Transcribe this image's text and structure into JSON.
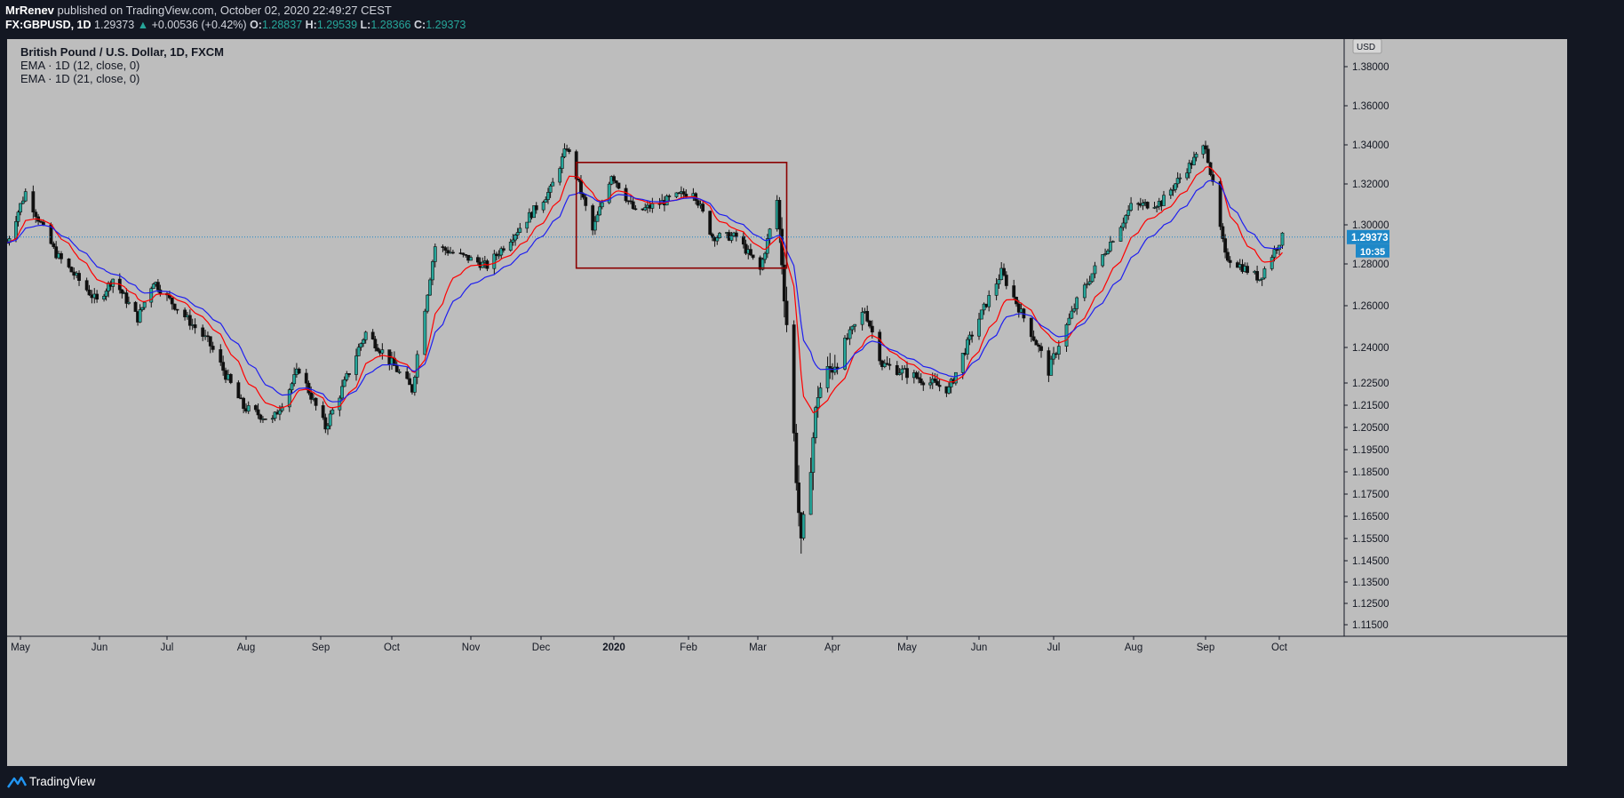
{
  "header": {
    "publisher": "MrRenev",
    "published_text": " published on TradingView.com, October 02, 2020 22:49:27 CEST",
    "symbol": "FX:GBPUSD, 1D",
    "last": "1.29373",
    "change_arrow": "▲",
    "change": "+0.00536 (+0.42%)",
    "o_label": "O:",
    "o_value": "1.28837",
    "h_label": "H:",
    "h_value": "1.29539",
    "l_label": "L:",
    "l_value": "1.28366",
    "c_label": "C:",
    "c_value": "1.29373"
  },
  "legend": {
    "title": "British Pound / U.S. Dollar, 1D, FXCM",
    "ema1": "EMA · 1D (12, close, 0)",
    "ema2": "EMA · 1D (21, close, 0)"
  },
  "price_scale": {
    "currency": "USD",
    "last_price": "1.29373",
    "countdown": "10:35",
    "ticks": [
      "1.38000",
      "1.36000",
      "1.34000",
      "1.32000",
      "1.30000",
      "1.28000",
      "1.26000",
      "1.24000",
      "1.22500",
      "1.21500",
      "1.20500",
      "1.19500",
      "1.18500",
      "1.17500",
      "1.16500",
      "1.15500",
      "1.14500",
      "1.13500",
      "1.12500",
      "1.11500"
    ]
  },
  "footer": {
    "brand": "TradingView"
  },
  "colors": {
    "bull": "#26a69a",
    "bear": "#101010",
    "ema12": "#ff0000",
    "ema21": "#1e1ef0",
    "box": "#8b0000",
    "last_price": "#1e88c8",
    "pane": "#bdbdbd",
    "background": "#131722"
  },
  "chart_data": {
    "type": "candlestick",
    "title": "British Pound / U.S. Dollar, 1D, FXCM",
    "x_axis_months": [
      "May",
      "Jun",
      "Jul",
      "Aug",
      "Sep",
      "Oct",
      "Nov",
      "Dec",
      "2020",
      "Feb",
      "Mar",
      "Apr",
      "May",
      "Jun",
      "Jul",
      "Aug",
      "Sep",
      "Oct"
    ],
    "y_range": [
      1.11,
      1.39
    ],
    "series": [
      {
        "name": "EMA · 1D (12, close, 0)",
        "color": "#ff0000"
      },
      {
        "name": "EMA · 1D (21, close, 0)",
        "color": "#1e1ef0"
      }
    ],
    "close_anchors": [
      {
        "date": "2019-04-25",
        "close": 1.291
      },
      {
        "date": "2019-05-03",
        "close": 1.316
      },
      {
        "date": "2019-05-15",
        "close": 1.285
      },
      {
        "date": "2019-05-31",
        "close": 1.262
      },
      {
        "date": "2019-06-07",
        "close": 1.273
      },
      {
        "date": "2019-06-18",
        "close": 1.254
      },
      {
        "date": "2019-06-25",
        "close": 1.272
      },
      {
        "date": "2019-07-17",
        "close": 1.243
      },
      {
        "date": "2019-07-31",
        "close": 1.214
      },
      {
        "date": "2019-08-12",
        "close": 1.208
      },
      {
        "date": "2019-08-23",
        "close": 1.231
      },
      {
        "date": "2019-09-03",
        "close": 1.205
      },
      {
        "date": "2019-09-20",
        "close": 1.247
      },
      {
        "date": "2019-10-02",
        "close": 1.232
      },
      {
        "date": "2019-10-09",
        "close": 1.222
      },
      {
        "date": "2019-10-18",
        "close": 1.289
      },
      {
        "date": "2019-11-08",
        "close": 1.279
      },
      {
        "date": "2019-12-05",
        "close": 1.317
      },
      {
        "date": "2019-12-12",
        "close": 1.339
      },
      {
        "date": "2019-12-23",
        "close": 1.297
      },
      {
        "date": "2019-12-31",
        "close": 1.325
      },
      {
        "date": "2020-01-10",
        "close": 1.306
      },
      {
        "date": "2020-02-03",
        "close": 1.317
      },
      {
        "date": "2020-02-11",
        "close": 1.294
      },
      {
        "date": "2020-02-21",
        "close": 1.294
      },
      {
        "date": "2020-03-02",
        "close": 1.277
      },
      {
        "date": "2020-03-09",
        "close": 1.312
      },
      {
        "date": "2020-03-13",
        "close": 1.252
      },
      {
        "date": "2020-03-19",
        "close": 1.15
      },
      {
        "date": "2020-03-26",
        "close": 1.221
      },
      {
        "date": "2020-04-14",
        "close": 1.258
      },
      {
        "date": "2020-04-21",
        "close": 1.233
      },
      {
        "date": "2020-05-19",
        "close": 1.222
      },
      {
        "date": "2020-06-10",
        "close": 1.276
      },
      {
        "date": "2020-06-29",
        "close": 1.23
      },
      {
        "date": "2020-07-10",
        "close": 1.262
      },
      {
        "date": "2020-07-31",
        "close": 1.309
      },
      {
        "date": "2020-08-13",
        "close": 1.311
      },
      {
        "date": "2020-09-01",
        "close": 1.34
      },
      {
        "date": "2020-09-09",
        "close": 1.284
      },
      {
        "date": "2020-09-23",
        "close": 1.273
      },
      {
        "date": "2020-10-02",
        "close": 1.2937
      }
    ],
    "annotation": {
      "type": "rectangle",
      "from": "2019-12-16",
      "to": "2020-03-13",
      "price_high": 1.331,
      "price_low": 1.278
    }
  }
}
